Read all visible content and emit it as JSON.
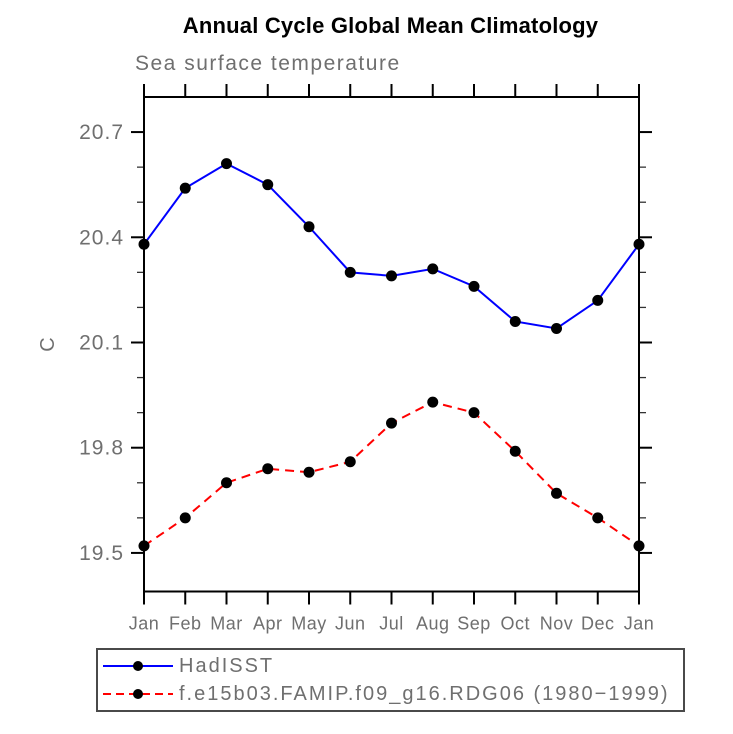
{
  "title": "Annual Cycle Global Mean Climatology",
  "subtitle": "Sea surface temperature",
  "colors": {
    "observation_line": "#0000ff",
    "model_line": "#ff0000",
    "marker": "#000000",
    "axis": "#000000",
    "label_gray": "#6f6f6f"
  },
  "chart_data": {
    "type": "line",
    "title": "Annual Cycle Global Mean Climatology",
    "subtitle": "Sea surface temperature",
    "xlabel": "",
    "ylabel": "C",
    "categories": [
      "Jan",
      "Feb",
      "Mar",
      "Apr",
      "May",
      "Jun",
      "Jul",
      "Aug",
      "Sep",
      "Oct",
      "Nov",
      "Dec",
      "Jan"
    ],
    "series": [
      {
        "name": "HadISST",
        "color": "#0000ff",
        "line_style": "solid",
        "marker": "filled-circle",
        "marker_color": "#000000",
        "values": [
          20.38,
          20.54,
          20.61,
          20.55,
          20.43,
          20.3,
          20.29,
          20.31,
          20.26,
          20.16,
          20.14,
          20.22,
          20.38
        ]
      },
      {
        "name": "f.e15b03.FAMIP.f09_g16.RDG06 (1980−1999)",
        "color": "#ff0000",
        "line_style": "dashed",
        "marker": "filled-circle",
        "marker_color": "#000000",
        "values": [
          19.52,
          19.6,
          19.7,
          19.74,
          19.73,
          19.76,
          19.87,
          19.93,
          19.9,
          19.79,
          19.67,
          19.6,
          19.52
        ]
      }
    ],
    "yticks": [
      19.5,
      19.8,
      20.1,
      20.4,
      20.7
    ],
    "ytick_labels": [
      "19.5",
      "19.8",
      "20.1",
      "20.4",
      "20.7"
    ],
    "minor_tick_interval": 0.1,
    "ylim": [
      19.39,
      20.8
    ],
    "grid": false,
    "legend_position": "bottom-left"
  }
}
